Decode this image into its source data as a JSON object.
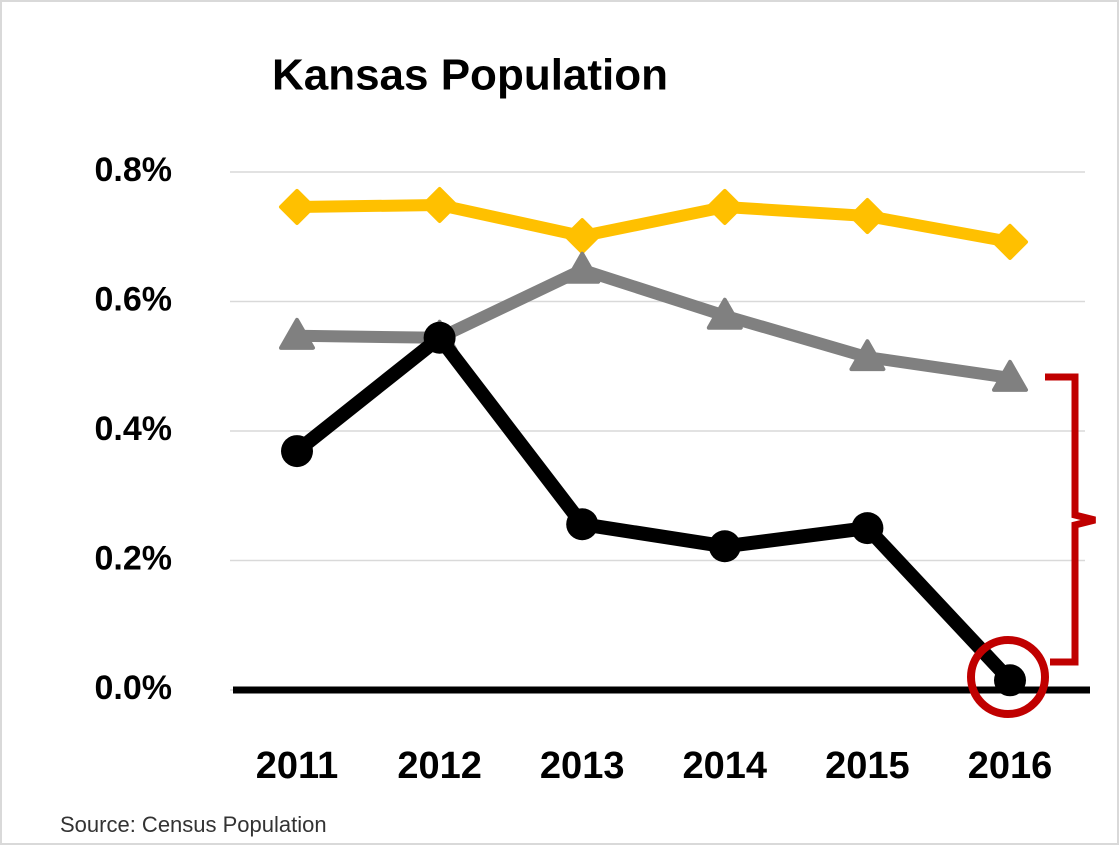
{
  "chart_data": {
    "type": "line",
    "title": "Kansas Population",
    "categories": [
      "2011",
      "2012",
      "2013",
      "2014",
      "2015",
      "2016"
    ],
    "series": [
      {
        "color": "#ffc000",
        "marker": "diamond",
        "values": [
          0.746,
          0.749,
          0.701,
          0.746,
          0.732,
          0.692
        ]
      },
      {
        "color": "#808080",
        "marker": "triangle",
        "values": [
          0.547,
          0.544,
          0.649,
          0.578,
          0.514,
          0.482
        ]
      },
      {
        "color": "#000000",
        "marker": "circle",
        "values": [
          0.369,
          0.544,
          0.256,
          0.222,
          0.25,
          0.015
        ]
      }
    ],
    "ylim": [
      0,
      0.8
    ],
    "yticks": [
      {
        "value": 0,
        "label": "0.0%"
      },
      {
        "value": 0.2,
        "label": "0.2%"
      },
      {
        "value": 0.4,
        "label": "0.4%"
      },
      {
        "value": 0.6,
        "label": "0.6%"
      },
      {
        "value": 0.8,
        "label": "0.8%"
      }
    ],
    "grid": true,
    "source": "Source: Census Population"
  }
}
